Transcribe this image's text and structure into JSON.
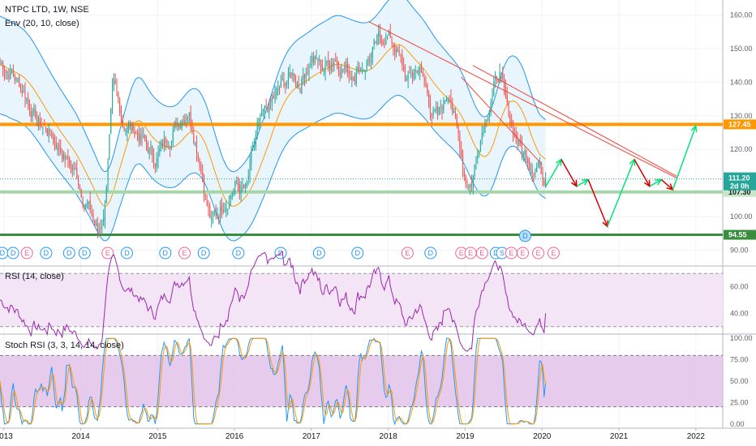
{
  "header": {
    "title": "NTPC LTD, 1W, NSE",
    "indicator": "Env (20, 10, close)",
    "rsi_label": "RSI (14, close)",
    "stoch_label": "Stoch RSI (3, 3, 14, 14, close)"
  },
  "colors": {
    "up": "#26a69a",
    "down": "#ef5350",
    "envelope": "#2196f3",
    "envelope_fill": "#e3f2fd",
    "basis": "#ff9800",
    "orange_level": "#ff9800",
    "green_level": "#4caf50",
    "trendline": "#f44336",
    "rsi": "#9c27b0",
    "stoch_k": "#2196f3",
    "stoch_d": "#ff9800",
    "band_fill": "#f3e5f5",
    "stoch_fill": "#e1bee7"
  },
  "chart_data": [
    {
      "type": "candlestick",
      "pane": "price",
      "title": "NTPC LTD, 1W, NSE",
      "x_labels": [
        "2013",
        "2014",
        "2015",
        "2016",
        "2017",
        "2018",
        "2019",
        "2020",
        "2021",
        "2022"
      ],
      "x_range": [
        2012.95,
        2022.35
      ],
      "y_ticks": [
        90,
        100,
        110,
        120,
        130,
        140,
        150,
        160
      ],
      "ylim": [
        85.5,
        164.5
      ],
      "price_path": [
        [
          2012.95,
          146
        ],
        [
          2013.1,
          143
        ],
        [
          2013.25,
          138
        ],
        [
          2013.45,
          128
        ],
        [
          2013.6,
          125
        ],
        [
          2013.8,
          118
        ],
        [
          2013.95,
          112
        ],
        [
          2014.1,
          103
        ],
        [
          2014.22,
          95
        ],
        [
          2014.3,
          100
        ],
        [
          2014.42,
          138
        ],
        [
          2014.55,
          128
        ],
        [
          2014.75,
          125
        ],
        [
          2014.95,
          117
        ],
        [
          2015.1,
          122
        ],
        [
          2015.25,
          128
        ],
        [
          2015.4,
          133
        ],
        [
          2015.55,
          118
        ],
        [
          2015.62,
          107
        ],
        [
          2015.7,
          98
        ],
        [
          2015.85,
          104
        ],
        [
          2016.0,
          110
        ],
        [
          2016.15,
          107
        ],
        [
          2016.3,
          125
        ],
        [
          2016.45,
          132
        ],
        [
          2016.6,
          138
        ],
        [
          2016.75,
          142
        ],
        [
          2016.85,
          140
        ],
        [
          2017.0,
          148
        ],
        [
          2017.15,
          144
        ],
        [
          2017.3,
          148
        ],
        [
          2017.5,
          143
        ],
        [
          2017.7,
          146
        ],
        [
          2017.85,
          151
        ],
        [
          2018.0,
          154
        ],
        [
          2018.1,
          150
        ],
        [
          2018.25,
          140
        ],
        [
          2018.4,
          145
        ],
        [
          2018.55,
          133
        ],
        [
          2018.65,
          129
        ],
        [
          2018.8,
          138
        ],
        [
          2018.9,
          125
        ],
        [
          2019.0,
          112
        ],
        [
          2019.08,
          110
        ],
        [
          2019.2,
          125
        ],
        [
          2019.35,
          138
        ],
        [
          2019.45,
          143
        ],
        [
          2019.55,
          130
        ],
        [
          2019.65,
          125
        ],
        [
          2019.75,
          119
        ],
        [
          2019.85,
          117
        ],
        [
          2019.95,
          116
        ],
        [
          2020.0,
          113
        ],
        [
          2020.05,
          111.2
        ]
      ],
      "levels": [
        {
          "label": "127.45",
          "value": 127.45,
          "color": "orange"
        },
        {
          "label": "107.30",
          "value": 107.3,
          "color": "lightgreen"
        },
        {
          "label": "94.55",
          "value": 94.55,
          "color": "green"
        }
      ],
      "last_price_label": "111.20",
      "countdown_label": "2d 0h",
      "trendlines": [
        [
          [
            2017.75,
            158
          ],
          [
            2021.75,
            111.5
          ]
        ],
        [
          [
            2018.95,
            141.5
          ],
          [
            2020.0,
            115.5
          ]
        ],
        [
          [
            2019.1,
            145
          ],
          [
            2021.75,
            112
          ]
        ]
      ],
      "projection_path": [
        [
          2020.05,
          109
        ],
        [
          2020.25,
          117
        ],
        [
          2020.45,
          109
        ],
        [
          2020.6,
          111
        ],
        [
          2020.85,
          97
        ],
        [
          2021.2,
          117
        ],
        [
          2021.4,
          109
        ],
        [
          2021.55,
          111
        ],
        [
          2021.7,
          108
        ],
        [
          2022.0,
          127
        ]
      ],
      "events": [
        {
          "x": 2012.98,
          "label": "D"
        },
        {
          "x": 2013.12,
          "label": "D"
        },
        {
          "x": 2013.3,
          "label": "E"
        },
        {
          "x": 2013.55,
          "label": "D"
        },
        {
          "x": 2013.85,
          "label": "D"
        },
        {
          "x": 2014.05,
          "label": "D"
        },
        {
          "x": 2014.35,
          "label": "E"
        },
        {
          "x": 2014.6,
          "label": "D"
        },
        {
          "x": 2015.1,
          "label": "D"
        },
        {
          "x": 2015.35,
          "label": "E"
        },
        {
          "x": 2015.6,
          "label": "D"
        },
        {
          "x": 2016.05,
          "label": "D"
        },
        {
          "x": 2016.6,
          "label": "D"
        },
        {
          "x": 2017.1,
          "label": "D"
        },
        {
          "x": 2017.6,
          "label": "D"
        },
        {
          "x": 2018.25,
          "label": "E"
        },
        {
          "x": 2018.55,
          "label": "D"
        },
        {
          "x": 2018.95,
          "label": "E"
        },
        {
          "x": 2019.07,
          "label": "E"
        },
        {
          "x": 2019.22,
          "label": "E"
        },
        {
          "x": 2019.4,
          "label": "D"
        },
        {
          "x": 2019.48,
          "label": "S"
        },
        {
          "x": 2019.6,
          "label": "E"
        },
        {
          "x": 2019.75,
          "label": "E"
        },
        {
          "x": 2019.95,
          "label": "E"
        },
        {
          "x": 2020.15,
          "label": "E"
        },
        {
          "x": 2019.78,
          "label": "D",
          "above": true
        }
      ]
    },
    {
      "type": "line",
      "pane": "rsi",
      "title": "RSI (14, close)",
      "y_ticks": [
        40,
        60
      ],
      "ylim": [
        25,
        75
      ],
      "band": [
        30,
        70
      ],
      "last_value": 40
    },
    {
      "type": "line",
      "pane": "stoch",
      "title": "Stoch RSI (3, 3, 14, 14, close)",
      "y_ticks": [
        0,
        25,
        50,
        75,
        100
      ],
      "y_tick_labels": [
        "0.00",
        "25.00",
        "50.00",
        "75.00",
        "100.00"
      ],
      "ylim": [
        -4,
        104
      ],
      "band": [
        20,
        80
      ],
      "series": [
        {
          "name": "K",
          "color": "#2196f3"
        },
        {
          "name": "D",
          "color": "#ff9800"
        }
      ]
    }
  ]
}
